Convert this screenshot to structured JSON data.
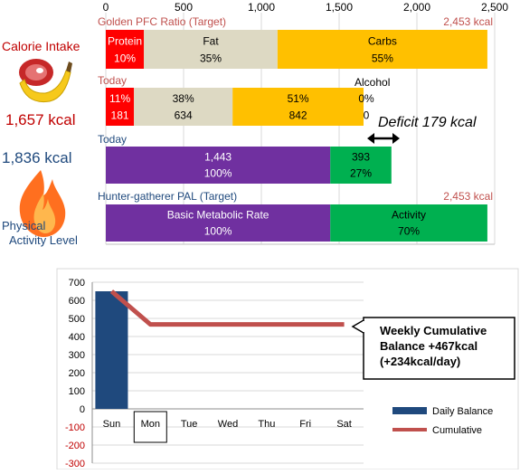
{
  "top_chart": {
    "axis_ticks": [
      "0",
      "500",
      "1,000",
      "1,500",
      "2,000",
      "2,500"
    ],
    "axis_max": 2500,
    "rows": [
      {
        "label": "Golden PFC Ratio (Target)",
        "label_color": "#c0504d",
        "total_label": "2,453 kcal",
        "total_color": "#c0504d",
        "segments": [
          {
            "name": "protein",
            "value": 245,
            "color": "#ff0000",
            "text_color": "#ffffff",
            "line1": "Protein",
            "line2": "10%"
          },
          {
            "name": "fat",
            "value": 859,
            "color": "#ddd9c3",
            "text_color": "#000000",
            "line1": "Fat",
            "line2": "35%"
          },
          {
            "name": "carbs",
            "value": 1349,
            "color": "#ffc000",
            "text_color": "#000000",
            "line1": "Carbs",
            "line2": "55%"
          }
        ]
      },
      {
        "label": "Today",
        "label_color": "#c0504d",
        "total_label": "",
        "segments": [
          {
            "name": "protein",
            "value": 181,
            "color": "#ff0000",
            "text_color": "#ffffff",
            "line1": "11%",
            "line2": "181"
          },
          {
            "name": "fat",
            "value": 634,
            "color": "#ddd9c3",
            "text_color": "#000000",
            "line1": "38%",
            "line2": "634"
          },
          {
            "name": "carbs",
            "value": 842,
            "color": "#ffc000",
            "text_color": "#000000",
            "line1": "51%",
            "line2": "842"
          },
          {
            "name": "alcohol",
            "value": 0,
            "color": "#ffffff",
            "text_color": "#000000",
            "line1": "0%",
            "line2": "0"
          }
        ]
      },
      {
        "label": "Today",
        "label_color": "#1f497d",
        "total_label": "",
        "segments": [
          {
            "name": "bmr",
            "value": 1443,
            "color": "#7030a0",
            "text_color": "#ffffff",
            "line1": "1,443",
            "line2": "100%"
          },
          {
            "name": "activity",
            "value": 393,
            "color": "#00b050",
            "text_color": "#000000",
            "line1": "393",
            "line2": "27%"
          }
        ]
      },
      {
        "label": "Hunter-gatherer  PAL (Target)",
        "label_color": "#1f497d",
        "total_label": "2,453 kcal",
        "total_color": "#c0504d",
        "segments": [
          {
            "name": "bmr",
            "value": 1443,
            "color": "#7030a0",
            "text_color": "#ffffff",
            "line1": "Basic Metabolic Rate",
            "line2": "100%"
          },
          {
            "name": "activity",
            "value": 1010,
            "color": "#00b050",
            "text_color": "#000000",
            "line1": "Activity",
            "line2": "70%"
          }
        ]
      }
    ],
    "alcohol_label": "Alcohol",
    "deficit_label": "Deficit 179 kcal"
  },
  "left_panel": {
    "calorie_intake_label": "Calorie Intake",
    "calorie_intake_value": "1,657 kcal",
    "burned_value": "1,836 kcal",
    "pal_label_line1": "Physical",
    "pal_label_line2": "Activity Level"
  },
  "chart_data": {
    "type": "bar",
    "categories": [
      "Sun",
      "Mon",
      "Tue",
      "Wed",
      "Thu",
      "Fri",
      "Sat"
    ],
    "highlight_category": "Mon",
    "series": [
      {
        "name": "Daily Balance",
        "type": "bar",
        "color": "#1f497d",
        "values": [
          650,
          null,
          null,
          null,
          null,
          null,
          null
        ]
      },
      {
        "name": "Cumulative",
        "type": "line",
        "color": "#c0504d",
        "values": [
          650,
          467,
          467,
          467,
          467,
          467,
          467
        ]
      }
    ],
    "ylim": [
      -300,
      700
    ],
    "yticks": [
      700,
      600,
      500,
      400,
      300,
      200,
      100,
      0,
      -100,
      -200,
      -300
    ],
    "negative_tick_color": "#c00000",
    "grid": "horizontal",
    "legend_position": "bottom-right",
    "annotation": [
      "Weekly Cumulative",
      "Balance +467kcal",
      "(+234kcal/day)"
    ]
  }
}
